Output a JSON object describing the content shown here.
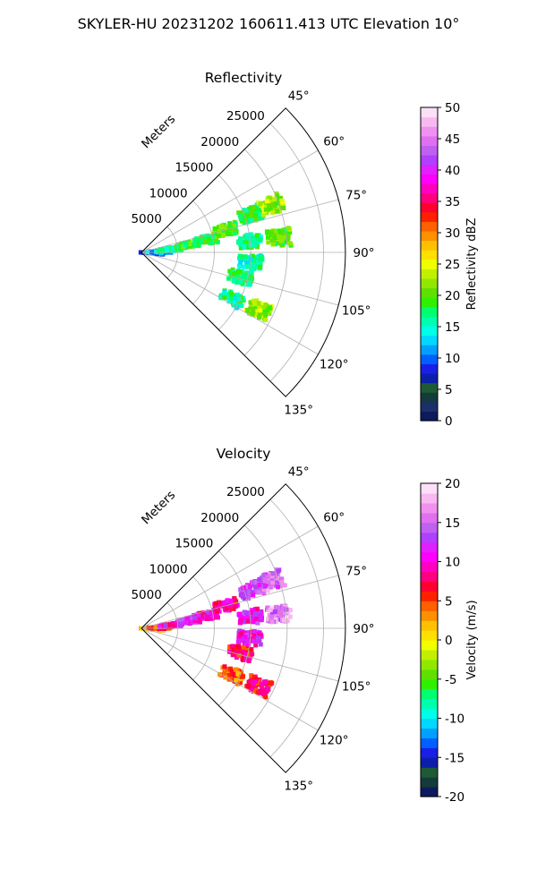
{
  "figure": {
    "suptitle": "SKYLER-HU  20231202  160611.413 UTC Elevation 10°"
  },
  "chart_data": [
    {
      "type": "heatmap",
      "projection": "polar-sector",
      "title": "Reflectivity",
      "radial_label": "Meters",
      "radial_ticks": [
        5000,
        10000,
        15000,
        20000,
        25000
      ],
      "angle_ticks_deg": [
        45,
        60,
        75,
        90,
        105,
        120,
        135
      ],
      "angle_range_deg": [
        45,
        135
      ],
      "range_max_m": 28000,
      "grid": true,
      "colorbar": {
        "label": "Reflectivity dBZ",
        "min": 0,
        "max": 50,
        "ticks": [
          0,
          5,
          10,
          15,
          20,
          25,
          30,
          35,
          40,
          45,
          50
        ],
        "colors": [
          "#0d1a5e",
          "#1b2f6b",
          "#153a3a",
          "#1e5a34",
          "#0c1fa8",
          "#1a1fe8",
          "#0060ff",
          "#00a0ff",
          "#00d8ff",
          "#00ffe8",
          "#00ffb0",
          "#00ff70",
          "#30f000",
          "#60e000",
          "#90e800",
          "#c0f000",
          "#f0ff00",
          "#ffe000",
          "#ffc000",
          "#ff9000",
          "#ff6000",
          "#ff2000",
          "#ff0030",
          "#ff0080",
          "#ff00c0",
          "#ff00ff",
          "#e020ff",
          "#b040ff",
          "#c060f0",
          "#e070f0",
          "#f090f0",
          "#f8b8f0",
          "#fde0f8"
        ]
      },
      "cells": [
        {
          "range_m": 1500,
          "az_deg": 92,
          "value": 10
        },
        {
          "range_m": 2500,
          "az_deg": 88,
          "value": 12
        },
        {
          "range_m": 4000,
          "az_deg": 84,
          "value": 16
        },
        {
          "range_m": 6500,
          "az_deg": 81,
          "value": 19
        },
        {
          "range_m": 9000,
          "az_deg": 79,
          "value": 18
        },
        {
          "range_m": 12000,
          "az_deg": 75,
          "value": 20
        },
        {
          "range_m": 16000,
          "az_deg": 71,
          "value": 18
        },
        {
          "range_m": 19000,
          "az_deg": 70,
          "value": 22
        },
        {
          "range_m": 15000,
          "az_deg": 84,
          "value": 17
        },
        {
          "range_m": 19000,
          "az_deg": 84,
          "value": 20
        },
        {
          "range_m": 15000,
          "az_deg": 95,
          "value": 16
        },
        {
          "range_m": 14000,
          "az_deg": 104,
          "value": 18
        },
        {
          "range_m": 14000,
          "az_deg": 117,
          "value": 16
        },
        {
          "range_m": 18000,
          "az_deg": 116,
          "value": 22
        }
      ]
    },
    {
      "type": "heatmap",
      "projection": "polar-sector",
      "title": "Velocity",
      "radial_label": "Meters",
      "radial_ticks": [
        5000,
        10000,
        15000,
        20000,
        25000
      ],
      "angle_ticks_deg": [
        45,
        60,
        75,
        90,
        105,
        120,
        135
      ],
      "angle_range_deg": [
        45,
        135
      ],
      "range_max_m": 28000,
      "grid": true,
      "colorbar": {
        "label": "Velocity (m/s)",
        "min": -20,
        "max": 20,
        "ticks": [
          -20,
          -15,
          -10,
          -5,
          0,
          5,
          10,
          15,
          20
        ],
        "colors": [
          "#0d1a5e",
          "#153a3a",
          "#1e5a34",
          "#0c1fa8",
          "#1a1fe8",
          "#0060ff",
          "#00a0ff",
          "#00d8ff",
          "#00ffe8",
          "#00ffb0",
          "#00ff70",
          "#30f000",
          "#60e000",
          "#90e800",
          "#c0f000",
          "#f0ff00",
          "#ffe000",
          "#ffc000",
          "#ff9000",
          "#ff6000",
          "#ff2000",
          "#ff0030",
          "#ff0080",
          "#ff00c0",
          "#ff00ff",
          "#e020ff",
          "#b040ff",
          "#c060f0",
          "#e070f0",
          "#f090f0",
          "#f8b8f0",
          "#fde0f8"
        ]
      },
      "cells": [
        {
          "range_m": 1500,
          "az_deg": 92,
          "value": 2
        },
        {
          "range_m": 2500,
          "az_deg": 88,
          "value": 5
        },
        {
          "range_m": 4000,
          "az_deg": 84,
          "value": 10
        },
        {
          "range_m": 6500,
          "az_deg": 81,
          "value": 12
        },
        {
          "range_m": 9000,
          "az_deg": 79,
          "value": 10
        },
        {
          "range_m": 12000,
          "az_deg": 75,
          "value": 9
        },
        {
          "range_m": 16000,
          "az_deg": 71,
          "value": 13
        },
        {
          "range_m": 19000,
          "az_deg": 70,
          "value": 15
        },
        {
          "range_m": 15000,
          "az_deg": 84,
          "value": 11
        },
        {
          "range_m": 19000,
          "az_deg": 84,
          "value": 16
        },
        {
          "range_m": 15000,
          "az_deg": 95,
          "value": 11
        },
        {
          "range_m": 14000,
          "az_deg": 104,
          "value": 7
        },
        {
          "range_m": 14000,
          "az_deg": 117,
          "value": 5
        },
        {
          "range_m": 18000,
          "az_deg": 116,
          "value": 7
        }
      ]
    }
  ]
}
